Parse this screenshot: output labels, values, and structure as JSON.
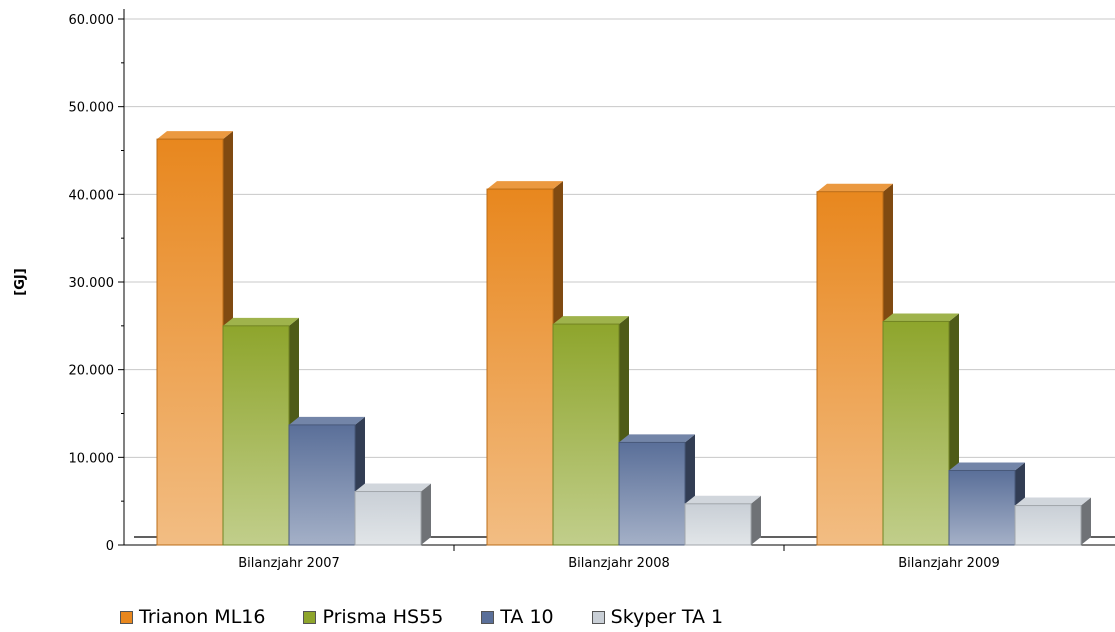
{
  "chart_data": {
    "type": "bar",
    "categories": [
      "Bilanzjahr 2007",
      "Bilanzjahr 2008",
      "Bilanzjahr 2009"
    ],
    "series": [
      {
        "name": "Trianon ML16",
        "values": [
          46300,
          40600,
          40300
        ],
        "color": "#e8871e"
      },
      {
        "name": "Prisma HS55",
        "values": [
          25000,
          25200,
          25500
        ],
        "color": "#8ea52c"
      },
      {
        "name": "TA 10",
        "values": [
          13700,
          11700,
          8500
        ],
        "color": "#5a6f99"
      },
      {
        "name": "Skyper TA 1",
        "values": [
          6100,
          4700,
          4500
        ],
        "color": "#c9cfd6"
      }
    ],
    "title": "",
    "xlabel": "",
    "ylabel": "[GJ]",
    "ylim": [
      0,
      60000
    ],
    "yticks": [
      "0",
      "10.000",
      "20.000",
      "30.000",
      "40.000",
      "50.000",
      "60.000"
    ],
    "grid": true,
    "legend_position": "bottom"
  }
}
